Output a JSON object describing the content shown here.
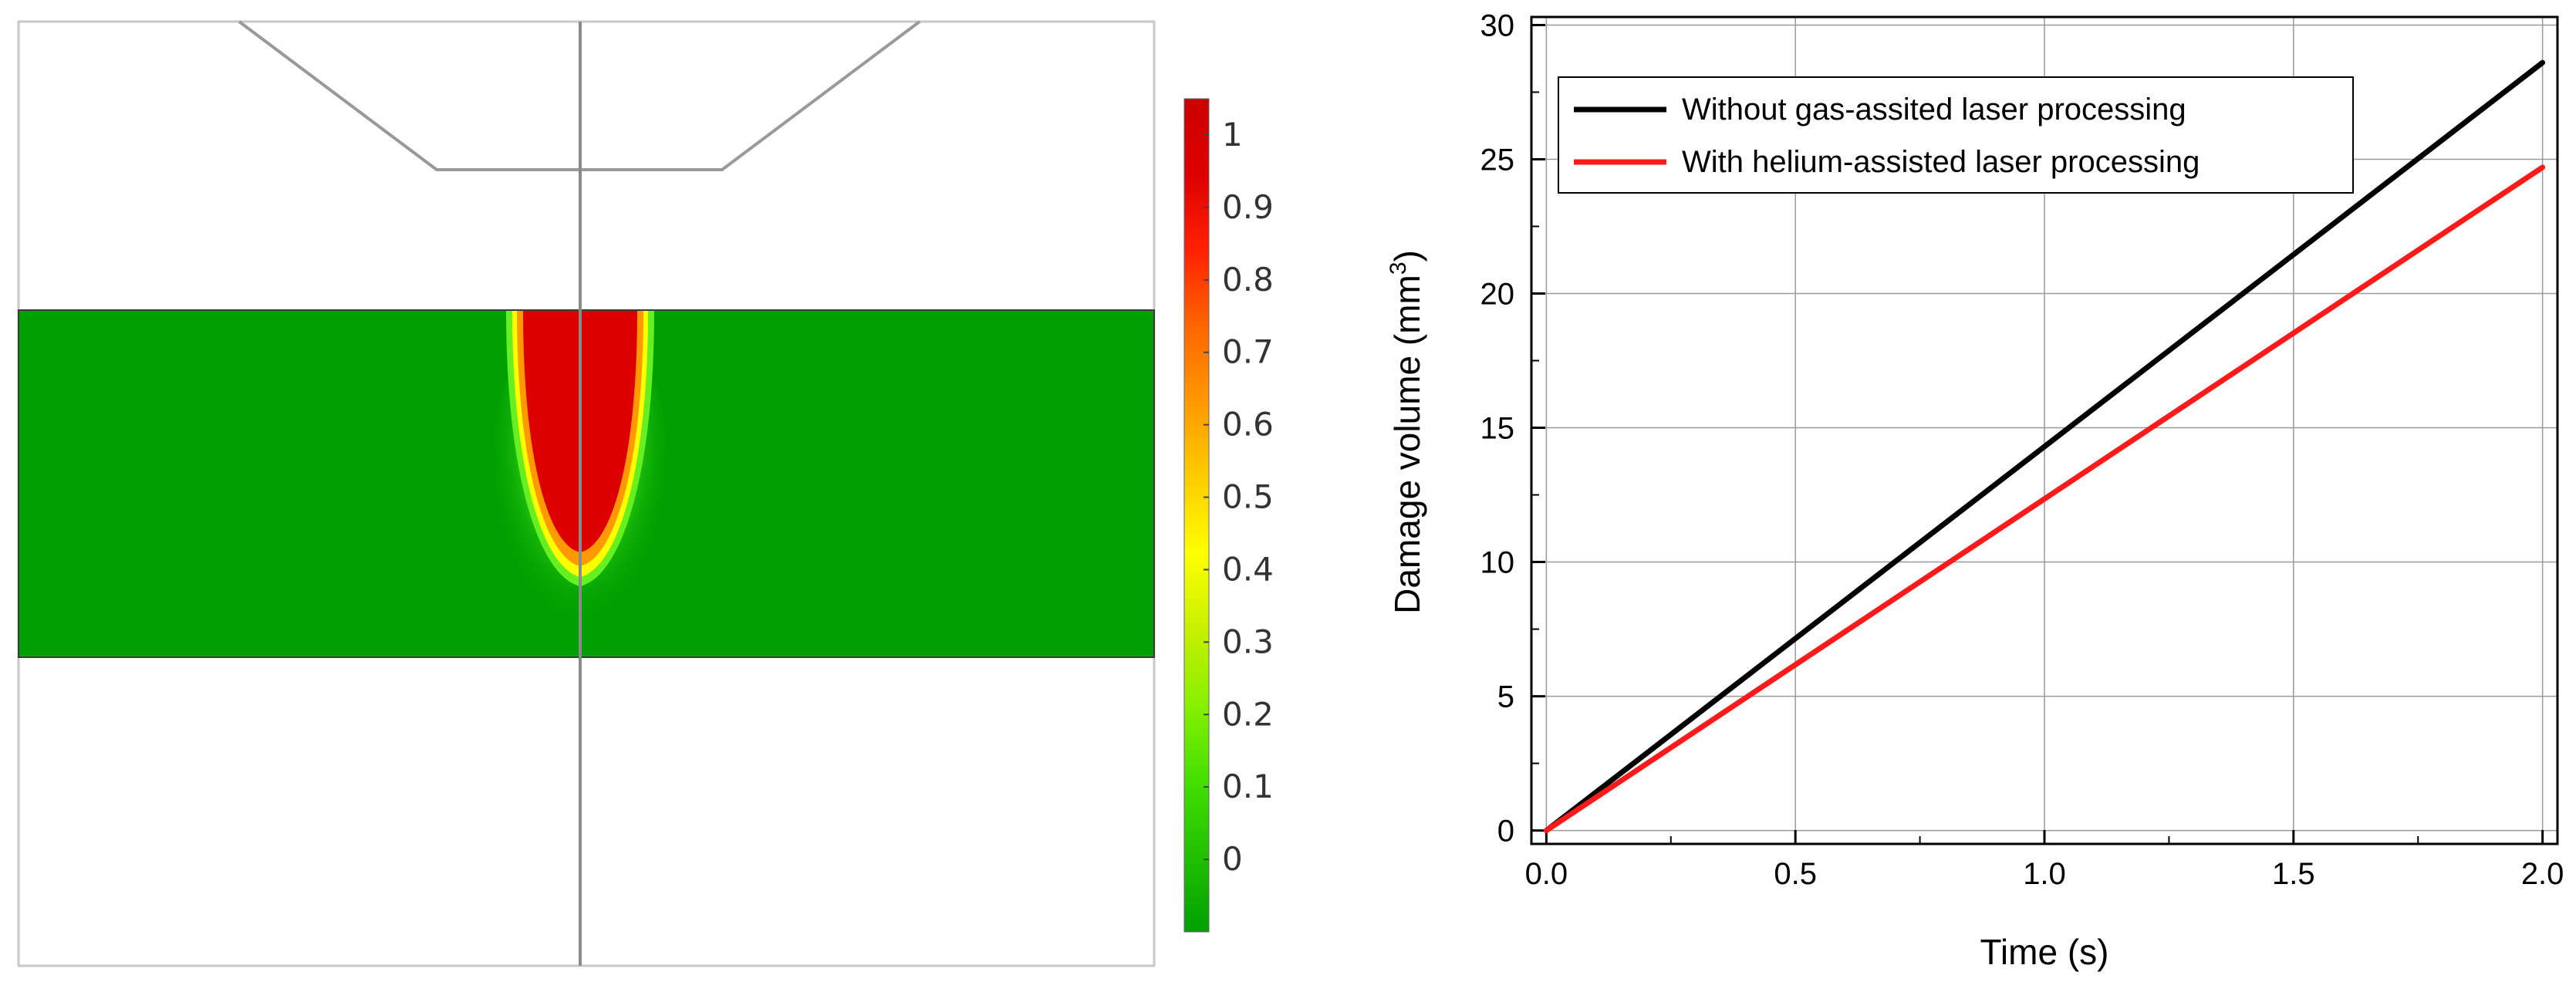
{
  "chart_data": [
    {
      "type": "heatmap",
      "title": "",
      "colorbar": {
        "ticks": [
          "1",
          "0.9",
          "0.8",
          "0.7",
          "0.6",
          "0.5",
          "0.4",
          "0.3",
          "0.2",
          "0.1",
          "0"
        ],
        "range": [
          -0.1,
          1.05
        ],
        "colors": [
          "#00a000",
          "#22c000",
          "#44e000",
          "#88f000",
          "#c8f000",
          "#ffff00",
          "#ffcc00",
          "#ff9900",
          "#ff6600",
          "#ff2200",
          "#dd0000",
          "#cc0000"
        ]
      }
    },
    {
      "type": "line",
      "title": "",
      "xlabel": "Time (s)",
      "ylabel": "Damage volume (mm",
      "ylabel_superscript": "3",
      "ylabel_suffix": ")",
      "xlim": [
        -0.03,
        2.03
      ],
      "ylim": [
        -0.5,
        30.3
      ],
      "x_ticks": [
        "0.0",
        "0.5",
        "1.0",
        "1.5",
        "2.0"
      ],
      "y_ticks": [
        "0",
        "5",
        "10",
        "15",
        "20",
        "25",
        "30"
      ],
      "grid": true,
      "legend_position": "top-left",
      "series": [
        {
          "name": "Without gas-assited laser processing",
          "color": "#000000",
          "x": [
            0,
            2.0
          ],
          "y": [
            0,
            28.6
          ]
        },
        {
          "name": "With helium-assisted laser processing",
          "color": "#ff1a1a",
          "x": [
            0,
            2.0
          ],
          "y": [
            0,
            24.7
          ]
        }
      ]
    }
  ]
}
